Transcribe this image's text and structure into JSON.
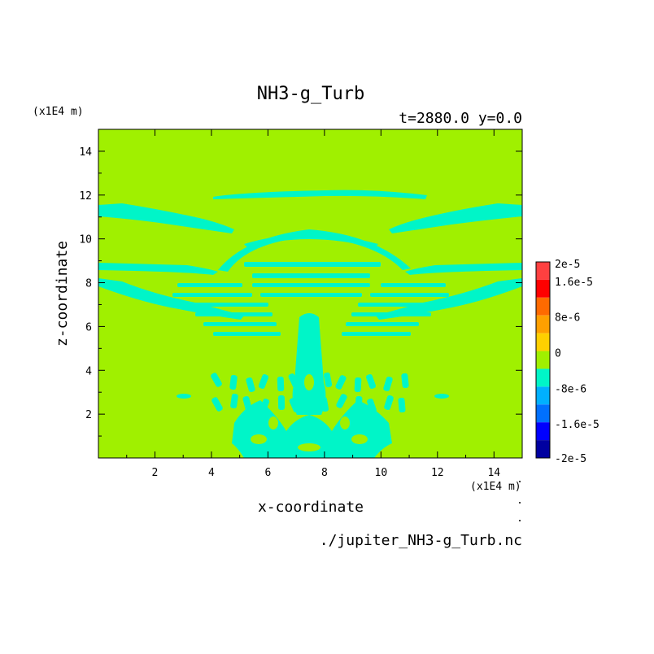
{
  "chart_data": {
    "type": "heatmap",
    "title": "NH3-g_Turb",
    "subtitle": "t=2880.0 y=0.0",
    "xlabel": "x-coordinate",
    "ylabel": "z-coordinate",
    "x_unit": "(x1E4 m)",
    "y_unit": "(x1E4 m)",
    "footer": "./jupiter_NH3-g_Turb.nc",
    "xlim": [
      0,
      15
    ],
    "ylim": [
      0,
      15
    ],
    "x_ticks": [
      "2",
      "4",
      "6",
      "8",
      "10",
      "12",
      "14"
    ],
    "y_ticks": [
      "2",
      "4",
      "6",
      "8",
      "10",
      "12",
      "14"
    ],
    "background_level": "0",
    "colorbar": {
      "levels": [
        {
          "label": "2e-5",
          "color": "#ff4040"
        },
        {
          "label": "1.6e-5",
          "color": "#ff0000"
        },
        {
          "label": "",
          "color": "#ff6a00"
        },
        {
          "label": "8e-6",
          "color": "#ffa000"
        },
        {
          "label": "",
          "color": "#ffd000"
        },
        {
          "label": "0",
          "color": "#a0f000"
        },
        {
          "label": "",
          "color": "#00f5c8"
        },
        {
          "label": "-8e-6",
          "color": "#00b0ff"
        },
        {
          "label": "",
          "color": "#0070ff"
        },
        {
          "label": "-1.6e-5",
          "color": "#0000ff"
        },
        {
          "label": "-2e-5",
          "color": "#0000a0"
        }
      ],
      "tick_labels": [
        "2e-5",
        "1.6e-5",
        "8e-6",
        "0",
        "-8e-6",
        "-1.6e-5",
        "-2e-5"
      ]
    },
    "negative_region_color": "#00f5c8",
    "background_color": "#a0f000"
  }
}
